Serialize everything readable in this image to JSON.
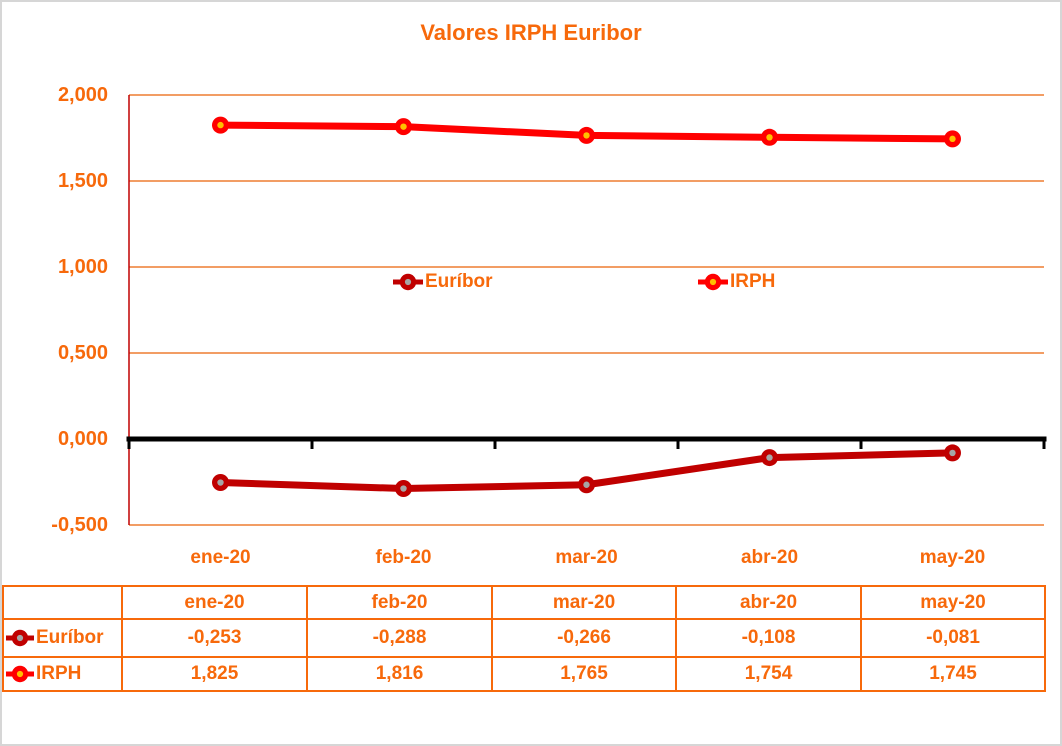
{
  "colors": {
    "orange": "#F7690B",
    "grid": "#ED7D31",
    "axis_y_line": "#C00000",
    "axis_zero_line": "#000000",
    "frame_border": "#D6D6D6"
  },
  "chart_data": {
    "type": "line",
    "title": "Valores IRPH Euribor",
    "categories": [
      "ene-20",
      "feb-20",
      "mar-20",
      "abr-20",
      "may-20"
    ],
    "series": [
      {
        "key": "euribor",
        "name": "Euríbor",
        "values": [
          -0.253,
          -0.288,
          -0.266,
          -0.108,
          -0.081
        ],
        "color": "#C00000",
        "marker_dot": "#A6A6A6"
      },
      {
        "key": "irph",
        "name": "IRPH",
        "values": [
          1.825,
          1.816,
          1.765,
          1.754,
          1.745
        ],
        "color": "#FF0000",
        "marker_dot": "#FFC000"
      }
    ],
    "ylim": [
      -0.5,
      2.0
    ],
    "yticks": [
      {
        "label": "2,000",
        "value": 2.0
      },
      {
        "label": "1,500",
        "value": 1.5
      },
      {
        "label": "1,000",
        "value": 1.0
      },
      {
        "label": "0,500",
        "value": 0.5
      },
      {
        "label": "0,000",
        "value": 0.0
      },
      {
        "label": "-0,500",
        "value": -0.5
      }
    ],
    "grid": true,
    "legend_position": "inside-center"
  },
  "table": {
    "columns": [
      "ene-20",
      "feb-20",
      "mar-20",
      "abr-20",
      "may-20"
    ],
    "rows": [
      {
        "key": "euribor",
        "label": "Euríbor",
        "values": [
          "-0,253",
          "-0,288",
          "-0,266",
          "-0,108",
          "-0,081"
        ]
      },
      {
        "key": "irph",
        "label": "IRPH",
        "values": [
          "1,825",
          "1,816",
          "1,765",
          "1,754",
          "1,745"
        ]
      }
    ]
  }
}
